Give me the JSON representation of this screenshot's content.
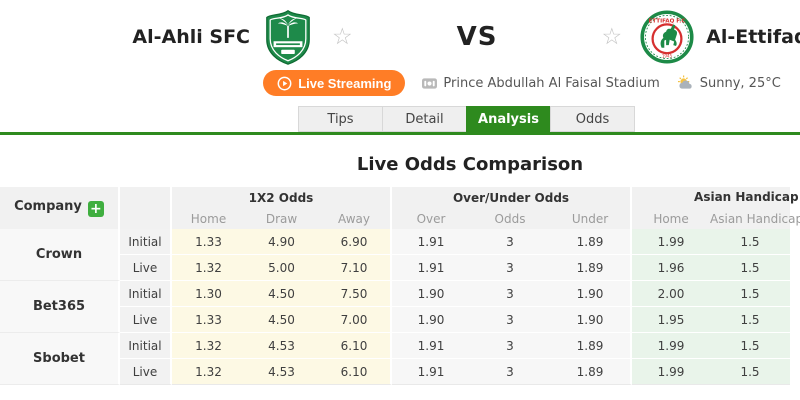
{
  "header": {
    "home_team": "Al-Ahli SFC",
    "away_team": "Al-Ettifaq",
    "vs_label": "VS",
    "live_streaming_label": "Live Streaming",
    "stadium": "Prince Abdullah Al Faisal Stadium",
    "weather": "Sunny, 25°C"
  },
  "tabs": [
    {
      "label": "Tips",
      "active": false
    },
    {
      "label": "Detail",
      "active": false
    },
    {
      "label": "Analysis",
      "active": true
    },
    {
      "label": "Odds",
      "active": false
    }
  ],
  "analysis": {
    "section_title": "Live Odds Comparison",
    "odds_table": {
      "company_header": "Company",
      "add_symbol": "+",
      "favorite_symbol": "☆",
      "row_labels": [
        "Initial",
        "Live"
      ],
      "groups": [
        "1X2 Odds",
        "Over/Under Odds",
        "Asian Handicap Odds"
      ],
      "subheaders": [
        "Home",
        "Draw",
        "Away",
        "Over",
        "Odds",
        "Under",
        "Home",
        "Asian Handicap"
      ],
      "companies": [
        {
          "name": "Crown",
          "initial": [
            "1.33",
            "4.90",
            "6.90",
            "1.91",
            "3",
            "1.89",
            "1.99",
            "1.5"
          ],
          "live": [
            "1.32",
            "5.00",
            "7.10",
            "1.91",
            "3",
            "1.89",
            "1.96",
            "1.5"
          ]
        },
        {
          "name": "Bet365",
          "initial": [
            "1.30",
            "4.50",
            "7.50",
            "1.90",
            "3",
            "1.90",
            "2.00",
            "1.5"
          ],
          "live": [
            "1.33",
            "4.50",
            "7.00",
            "1.90",
            "3",
            "1.90",
            "1.95",
            "1.5"
          ]
        },
        {
          "name": "Sbobet",
          "initial": [
            "1.32",
            "4.53",
            "6.10",
            "1.91",
            "3",
            "1.89",
            "1.99",
            "1.5"
          ],
          "live": [
            "1.32",
            "4.53",
            "6.10",
            "1.91",
            "3",
            "1.89",
            "1.99",
            "1.5"
          ]
        }
      ]
    }
  },
  "colors": {
    "accent_green": "#2e8a1e",
    "accent_orange": "#ff7d26",
    "cell_1x2_bg": "#fdf9e4",
    "cell_ou_bg": "#f7f7f7",
    "cell_ah_bg": "#e9f4ea"
  }
}
